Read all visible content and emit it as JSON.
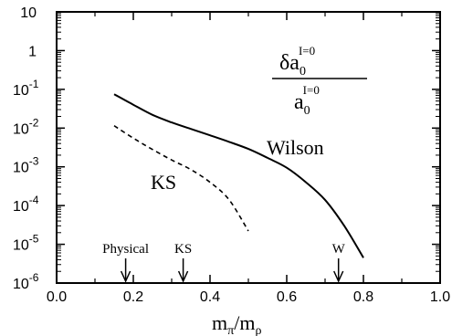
{
  "chart_data": {
    "type": "line",
    "xlabel_main": "m",
    "xlabel_sub1": "π",
    "xlabel_sep": "/m",
    "xlabel_sub2": "ρ",
    "xlim": [
      0.0,
      1.0
    ],
    "ylim_exp": [
      -6,
      1
    ],
    "y_scale": "log",
    "x_ticks": [
      "0.0",
      "0.2",
      "0.4",
      "0.6",
      "0.8",
      "1.0"
    ],
    "y_ticks": [
      {
        "base": "10",
        "exp": "-6"
      },
      {
        "base": "10",
        "exp": "-5"
      },
      {
        "base": "10",
        "exp": "-4"
      },
      {
        "base": "10",
        "exp": "-3"
      },
      {
        "base": "10",
        "exp": "-2"
      },
      {
        "base": "10",
        "exp": "-1"
      },
      {
        "base": "1",
        "exp": ""
      },
      {
        "base": "10",
        "exp": ""
      }
    ],
    "series": [
      {
        "name": "Wilson",
        "style": "solid",
        "x": [
          0.15,
          0.2,
          0.25,
          0.3,
          0.35,
          0.4,
          0.45,
          0.5,
          0.55,
          0.6,
          0.65,
          0.7,
          0.75,
          0.8
        ],
        "y": [
          0.075,
          0.04,
          0.022,
          0.014,
          0.0095,
          0.0065,
          0.0044,
          0.0029,
          0.0017,
          0.00095,
          0.0004,
          0.00014,
          3e-05,
          4.5e-06
        ]
      },
      {
        "name": "KS",
        "style": "dashed",
        "x": [
          0.15,
          0.2,
          0.25,
          0.3,
          0.35,
          0.4,
          0.45,
          0.5
        ],
        "y": [
          0.0115,
          0.0055,
          0.0028,
          0.0015,
          0.00085,
          0.0004,
          0.00014,
          2.2e-05
        ]
      }
    ],
    "annotation": {
      "numerator": "δa",
      "numerator_sub": "0",
      "numerator_sup": "I=0",
      "denominator": "a",
      "denominator_sub": "0",
      "denominator_sup": "I=0"
    },
    "markers": [
      {
        "label": "Physical",
        "x": 0.18
      },
      {
        "label": "KS",
        "x": 0.33
      },
      {
        "label": "W",
        "x": 0.735
      }
    ]
  }
}
